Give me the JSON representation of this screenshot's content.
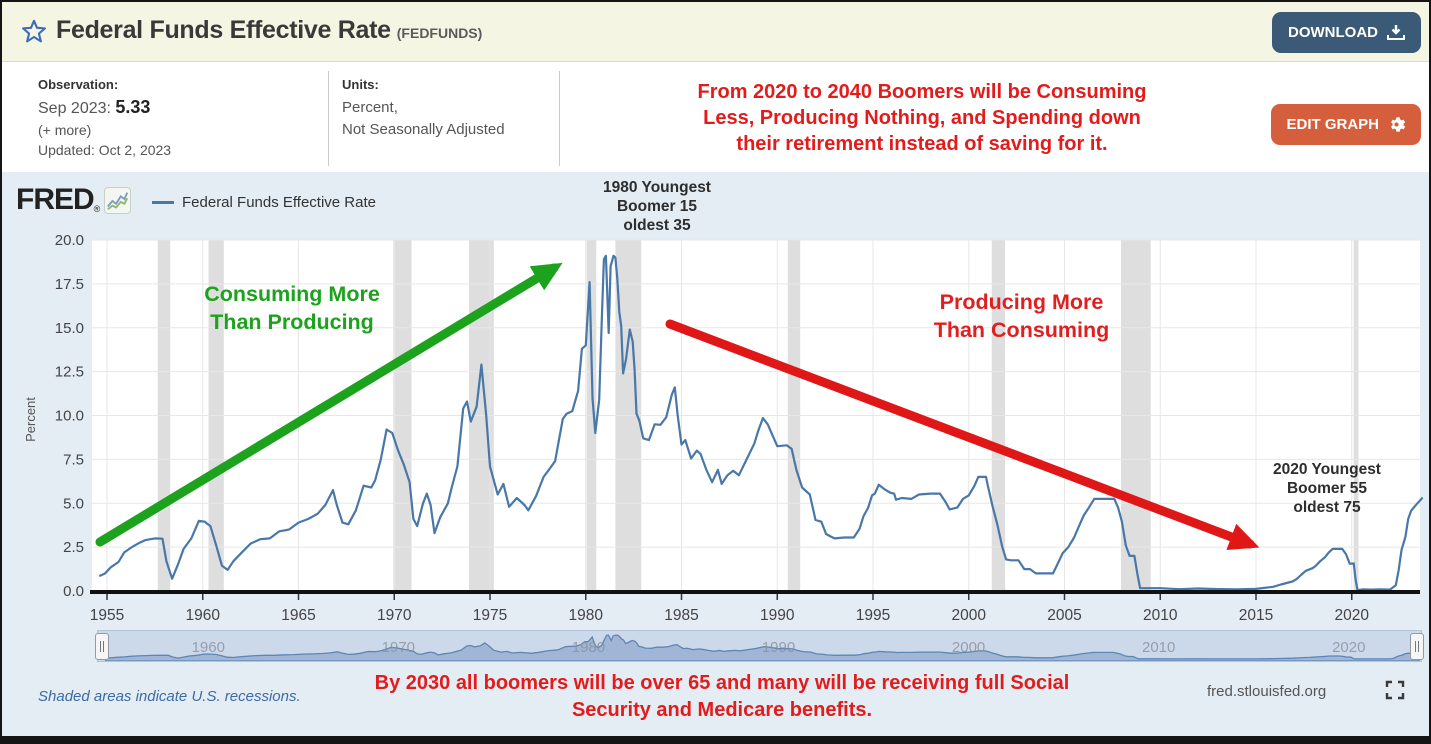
{
  "header": {
    "title": "Federal Funds Effective Rate",
    "series_id": "(FEDFUNDS)",
    "download_label": "DOWNLOAD"
  },
  "info": {
    "observation_label": "Observation:",
    "observation_date": "Sep 2023:",
    "observation_value": "5.33",
    "more_label": "(+ more)",
    "updated": "Updated: Oct 2, 2023",
    "units_label": "Units:",
    "units_line1": "Percent,",
    "units_line2": "Not Seasonally Adjusted",
    "edit_graph_label": "EDIT GRAPH"
  },
  "annotations": {
    "top_red": [
      "From 2020 to 2040 Boomers will be Consuming",
      "Less, Producing Nothing, and Spending down",
      "their retirement instead of saving for it."
    ],
    "boomer_1980": [
      "1980 Youngest",
      "Boomer 15",
      "oldest 35"
    ],
    "boomer_2020": [
      "2020 Youngest",
      "Boomer 55",
      "oldest 75"
    ],
    "green_note": [
      "Consuming More",
      "Than Producing"
    ],
    "red_note_mid": [
      "Producing More",
      "Than Consuming"
    ],
    "bottom_red": [
      "By 2030 all boomers will be over 65 and many will be receiving full Social",
      "Security and Medicare benefits."
    ]
  },
  "chart": {
    "logo": "FRED",
    "logo_reg": "®",
    "legend": "Federal Funds Effective Rate",
    "ylabel": "Percent"
  },
  "footer": {
    "recession_note": "Shaded areas indicate U.S. recessions.",
    "source": "fred.stlouisfed.org"
  },
  "colors": {
    "line": "#4877a8",
    "plot_bg": "#ffffff",
    "chart_bg": "#e4ecf4",
    "recession": "#dedede",
    "grid": "#e7e7e7",
    "axis_line": "#111111",
    "tick_text": "#444444",
    "green_arrow": "#1ca21c",
    "red_arrow": "#df1717",
    "slider_area_fill": "rgba(125,153,196,0.55)",
    "slider_line": "#5d86b4",
    "slider_tick_text": "#8a909a",
    "accent_cream": "#f5f5e3",
    "download_btn": "#3b5a78",
    "edit_btn": "#d55f3c",
    "annotation_red": "#e31b1b"
  },
  "chart_data": {
    "type": "line",
    "title": "Federal Funds Effective Rate",
    "xlabel": "",
    "ylabel": "Percent",
    "ylim": [
      0,
      20
    ],
    "xlim": [
      1954.2,
      2023.8
    ],
    "grid": true,
    "legend_position": "top-left",
    "y_ticks": [
      0,
      2.5,
      5,
      7.5,
      10,
      12.5,
      15,
      17.5,
      20
    ],
    "x_ticks": [
      1955,
      1960,
      1965,
      1970,
      1975,
      1980,
      1985,
      1990,
      1995,
      2000,
      2005,
      2010,
      2015,
      2020
    ],
    "slider_ticks": [
      1960,
      1970,
      1980,
      1990,
      2000,
      2010,
      2020
    ],
    "recessions": [
      [
        1957.65,
        1958.3
      ],
      [
        1960.3,
        1961.1
      ],
      [
        1969.95,
        1970.9
      ],
      [
        1973.9,
        1975.2
      ],
      [
        1980.05,
        1980.55
      ],
      [
        1981.55,
        1982.9
      ],
      [
        1990.55,
        1991.2
      ],
      [
        2001.2,
        2001.9
      ],
      [
        2007.95,
        2009.5
      ],
      [
        2020.1,
        2020.35
      ]
    ],
    "series": [
      {
        "name": "Federal Funds Effective Rate",
        "points": [
          [
            1954.6,
            0.85
          ],
          [
            1954.9,
            1.0
          ],
          [
            1955.2,
            1.35
          ],
          [
            1955.6,
            1.65
          ],
          [
            1955.9,
            2.2
          ],
          [
            1956.3,
            2.5
          ],
          [
            1956.7,
            2.75
          ],
          [
            1957.0,
            2.9
          ],
          [
            1957.5,
            3.0
          ],
          [
            1957.9,
            2.98
          ],
          [
            1958.1,
            1.7
          ],
          [
            1958.4,
            0.7
          ],
          [
            1958.7,
            1.5
          ],
          [
            1959.0,
            2.4
          ],
          [
            1959.4,
            3.0
          ],
          [
            1959.8,
            4.0
          ],
          [
            1960.1,
            3.95
          ],
          [
            1960.4,
            3.7
          ],
          [
            1960.7,
            2.6
          ],
          [
            1961.0,
            1.45
          ],
          [
            1961.3,
            1.2
          ],
          [
            1961.6,
            1.7
          ],
          [
            1962.0,
            2.15
          ],
          [
            1962.5,
            2.7
          ],
          [
            1963.0,
            2.95
          ],
          [
            1963.5,
            3.0
          ],
          [
            1964.0,
            3.4
          ],
          [
            1964.5,
            3.5
          ],
          [
            1965.0,
            3.9
          ],
          [
            1965.5,
            4.1
          ],
          [
            1966.0,
            4.4
          ],
          [
            1966.4,
            4.9
          ],
          [
            1966.8,
            5.75
          ],
          [
            1967.0,
            4.9
          ],
          [
            1967.3,
            3.9
          ],
          [
            1967.6,
            3.8
          ],
          [
            1968.0,
            4.6
          ],
          [
            1968.4,
            6.0
          ],
          [
            1968.8,
            5.9
          ],
          [
            1969.0,
            6.3
          ],
          [
            1969.3,
            7.5
          ],
          [
            1969.6,
            9.2
          ],
          [
            1969.9,
            9.0
          ],
          [
            1970.2,
            8.0
          ],
          [
            1970.5,
            7.2
          ],
          [
            1970.8,
            6.2
          ],
          [
            1971.0,
            4.1
          ],
          [
            1971.2,
            3.7
          ],
          [
            1971.5,
            5.0
          ],
          [
            1971.7,
            5.55
          ],
          [
            1971.9,
            4.9
          ],
          [
            1972.1,
            3.3
          ],
          [
            1972.4,
            4.2
          ],
          [
            1972.8,
            5.0
          ],
          [
            1973.0,
            5.9
          ],
          [
            1973.3,
            7.1
          ],
          [
            1973.6,
            10.4
          ],
          [
            1973.8,
            10.8
          ],
          [
            1974.0,
            9.65
          ],
          [
            1974.3,
            10.5
          ],
          [
            1974.55,
            12.9
          ],
          [
            1974.8,
            10.0
          ],
          [
            1975.0,
            7.1
          ],
          [
            1975.4,
            5.5
          ],
          [
            1975.7,
            6.1
          ],
          [
            1976.0,
            4.8
          ],
          [
            1976.4,
            5.3
          ],
          [
            1976.8,
            4.9
          ],
          [
            1977.0,
            4.6
          ],
          [
            1977.4,
            5.4
          ],
          [
            1977.8,
            6.5
          ],
          [
            1978.0,
            6.8
          ],
          [
            1978.4,
            7.4
          ],
          [
            1978.8,
            9.8
          ],
          [
            1979.0,
            10.1
          ],
          [
            1979.3,
            10.25
          ],
          [
            1979.6,
            11.4
          ],
          [
            1979.8,
            13.8
          ],
          [
            1980.0,
            14.0
          ],
          [
            1980.2,
            17.6
          ],
          [
            1980.35,
            11.0
          ],
          [
            1980.5,
            9.0
          ],
          [
            1980.7,
            10.9
          ],
          [
            1980.85,
            15.8
          ],
          [
            1980.95,
            18.9
          ],
          [
            1981.05,
            19.1
          ],
          [
            1981.2,
            14.7
          ],
          [
            1981.3,
            18.5
          ],
          [
            1981.45,
            19.1
          ],
          [
            1981.55,
            19.0
          ],
          [
            1981.65,
            17.8
          ],
          [
            1981.75,
            15.9
          ],
          [
            1981.85,
            15.1
          ],
          [
            1981.95,
            12.4
          ],
          [
            1982.1,
            13.2
          ],
          [
            1982.3,
            14.9
          ],
          [
            1982.45,
            14.2
          ],
          [
            1982.55,
            12.6
          ],
          [
            1982.65,
            10.1
          ],
          [
            1982.8,
            9.7
          ],
          [
            1983.0,
            8.7
          ],
          [
            1983.3,
            8.6
          ],
          [
            1983.6,
            9.5
          ],
          [
            1983.9,
            9.47
          ],
          [
            1984.2,
            9.9
          ],
          [
            1984.5,
            11.2
          ],
          [
            1984.65,
            11.6
          ],
          [
            1984.8,
            10.0
          ],
          [
            1985.0,
            8.35
          ],
          [
            1985.2,
            8.6
          ],
          [
            1985.5,
            7.55
          ],
          [
            1985.8,
            8.0
          ],
          [
            1986.0,
            7.8
          ],
          [
            1986.3,
            6.9
          ],
          [
            1986.6,
            6.2
          ],
          [
            1986.9,
            6.9
          ],
          [
            1987.1,
            6.1
          ],
          [
            1987.4,
            6.6
          ],
          [
            1987.7,
            6.85
          ],
          [
            1988.0,
            6.6
          ],
          [
            1988.4,
            7.5
          ],
          [
            1988.8,
            8.4
          ],
          [
            1989.0,
            9.1
          ],
          [
            1989.25,
            9.85
          ],
          [
            1989.5,
            9.5
          ],
          [
            1989.7,
            9.0
          ],
          [
            1990.0,
            8.25
          ],
          [
            1990.5,
            8.3
          ],
          [
            1990.75,
            8.1
          ],
          [
            1991.0,
            6.9
          ],
          [
            1991.3,
            5.9
          ],
          [
            1991.7,
            5.5
          ],
          [
            1992.0,
            4.05
          ],
          [
            1992.3,
            3.95
          ],
          [
            1992.55,
            3.25
          ],
          [
            1992.8,
            3.1
          ],
          [
            1993.0,
            3.0
          ],
          [
            1993.5,
            3.05
          ],
          [
            1994.0,
            3.05
          ],
          [
            1994.3,
            3.55
          ],
          [
            1994.5,
            4.25
          ],
          [
            1994.75,
            4.75
          ],
          [
            1994.95,
            5.45
          ],
          [
            1995.1,
            5.55
          ],
          [
            1995.3,
            6.05
          ],
          [
            1995.6,
            5.8
          ],
          [
            1995.9,
            5.6
          ],
          [
            1996.1,
            5.55
          ],
          [
            1996.2,
            5.2
          ],
          [
            1996.5,
            5.3
          ],
          [
            1997.0,
            5.25
          ],
          [
            1997.4,
            5.5
          ],
          [
            1998.0,
            5.55
          ],
          [
            1998.5,
            5.55
          ],
          [
            1998.8,
            5.05
          ],
          [
            1999.0,
            4.65
          ],
          [
            1999.4,
            4.75
          ],
          [
            1999.7,
            5.25
          ],
          [
            2000.0,
            5.45
          ],
          [
            2000.3,
            6.0
          ],
          [
            2000.5,
            6.5
          ],
          [
            2000.9,
            6.5
          ],
          [
            2001.0,
            5.98
          ],
          [
            2001.25,
            4.8
          ],
          [
            2001.5,
            3.75
          ],
          [
            2001.75,
            2.5
          ],
          [
            2001.95,
            1.8
          ],
          [
            2002.2,
            1.75
          ],
          [
            2002.6,
            1.75
          ],
          [
            2002.9,
            1.25
          ],
          [
            2003.2,
            1.25
          ],
          [
            2003.5,
            1.0
          ],
          [
            2004.0,
            1.0
          ],
          [
            2004.4,
            1.0
          ],
          [
            2004.6,
            1.45
          ],
          [
            2004.9,
            2.15
          ],
          [
            2005.2,
            2.5
          ],
          [
            2005.5,
            3.05
          ],
          [
            2005.8,
            3.8
          ],
          [
            2006.0,
            4.3
          ],
          [
            2006.3,
            4.8
          ],
          [
            2006.55,
            5.25
          ],
          [
            2007.0,
            5.25
          ],
          [
            2007.6,
            5.25
          ],
          [
            2007.8,
            4.75
          ],
          [
            2008.0,
            3.95
          ],
          [
            2008.2,
            2.6
          ],
          [
            2008.4,
            2.0
          ],
          [
            2008.65,
            2.0
          ],
          [
            2008.8,
            1.0
          ],
          [
            2008.95,
            0.16
          ],
          [
            2009.5,
            0.16
          ],
          [
            2010.0,
            0.16
          ],
          [
            2011.0,
            0.1
          ],
          [
            2012.0,
            0.14
          ],
          [
            2013.0,
            0.11
          ],
          [
            2014.0,
            0.09
          ],
          [
            2015.0,
            0.12
          ],
          [
            2015.9,
            0.24
          ],
          [
            2016.3,
            0.37
          ],
          [
            2016.9,
            0.54
          ],
          [
            2017.1,
            0.66
          ],
          [
            2017.35,
            0.91
          ],
          [
            2017.6,
            1.15
          ],
          [
            2017.95,
            1.3
          ],
          [
            2018.1,
            1.42
          ],
          [
            2018.35,
            1.7
          ],
          [
            2018.6,
            1.92
          ],
          [
            2018.8,
            2.2
          ],
          [
            2019.0,
            2.4
          ],
          [
            2019.5,
            2.4
          ],
          [
            2019.7,
            2.1
          ],
          [
            2019.9,
            1.55
          ],
          [
            2020.1,
            1.58
          ],
          [
            2020.2,
            0.65
          ],
          [
            2020.3,
            0.05
          ],
          [
            2020.6,
            0.09
          ],
          [
            2021.0,
            0.08
          ],
          [
            2021.5,
            0.09
          ],
          [
            2022.0,
            0.08
          ],
          [
            2022.3,
            0.33
          ],
          [
            2022.45,
            1.2
          ],
          [
            2022.6,
            2.33
          ],
          [
            2022.8,
            3.08
          ],
          [
            2022.95,
            4.1
          ],
          [
            2023.1,
            4.57
          ],
          [
            2023.3,
            4.83
          ],
          [
            2023.5,
            5.08
          ],
          [
            2023.7,
            5.33
          ]
        ]
      }
    ]
  }
}
